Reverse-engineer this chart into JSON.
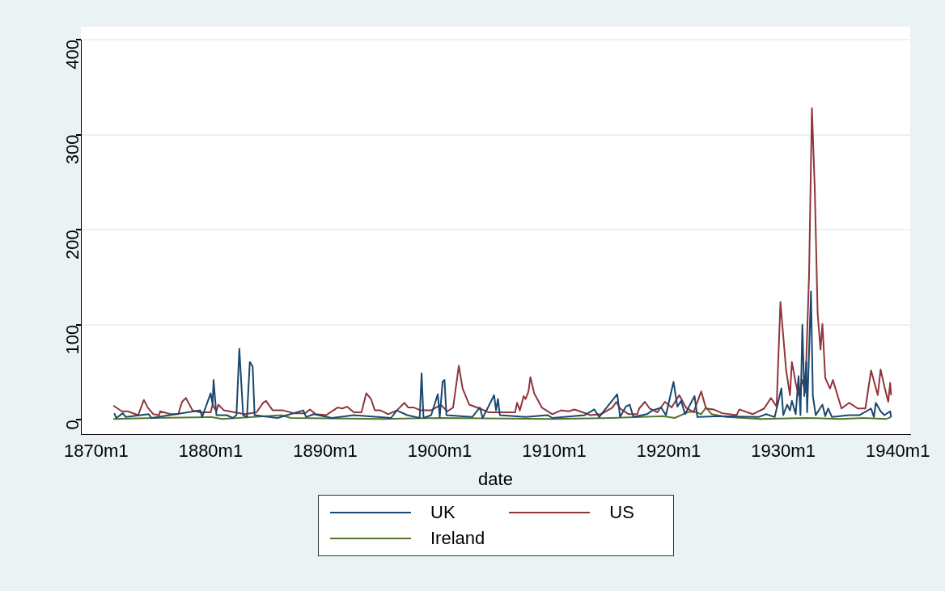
{
  "chart_data": {
    "type": "line",
    "xlabel": "date",
    "xlim": [
      "1868-09",
      "1941-02"
    ],
    "ylim": [
      -15,
      400
    ],
    "xticks": [
      {
        "value": "1870-01",
        "label": "1870m1"
      },
      {
        "value": "1880-01",
        "label": "1880m1"
      },
      {
        "value": "1890-01",
        "label": "1890m1"
      },
      {
        "value": "1900-01",
        "label": "1900m1"
      },
      {
        "value": "1910-01",
        "label": "1910m1"
      },
      {
        "value": "1920-01",
        "label": "1920m1"
      },
      {
        "value": "1930-01",
        "label": "1930m1"
      },
      {
        "value": "1940-01",
        "label": "1940m1"
      }
    ],
    "yticks": [
      0,
      100,
      200,
      300,
      400
    ],
    "grid": "y",
    "legend": "bottom",
    "marker": "none",
    "line_style": "solid",
    "series": [
      {
        "name": "UK",
        "color": "#1a476f",
        "x": [
          "1871-08",
          "1871-10",
          "1872-05",
          "1872-08",
          "1874-08",
          "1874-11",
          "1879-02",
          "1879-04",
          "1880-01",
          "1880-03",
          "1880-04",
          "1880-07",
          "1881-06",
          "1881-12",
          "1882-04",
          "1882-07",
          "1882-11",
          "1883-03",
          "1883-06",
          "1883-09",
          "1883-11",
          "1885-11",
          "1888-02",
          "1888-05",
          "1889-01",
          "1890-08",
          "1892-07",
          "1895-10",
          "1896-04",
          "1897-03",
          "1898-04",
          "1898-06",
          "1898-08",
          "1899-04",
          "1899-11",
          "1900-01",
          "1900-04",
          "1900-06",
          "1900-08",
          "1902-11",
          "1903-07",
          "1903-10",
          "1904-10",
          "1904-12",
          "1905-02",
          "1905-04",
          "1907-07",
          "1909-06",
          "1909-11",
          "1912-09",
          "1913-07",
          "1913-12",
          "1915-07",
          "1915-10",
          "1916-04",
          "1916-08",
          "1916-12",
          "1918-02",
          "1918-08",
          "1919-05",
          "1919-10",
          "1920-06",
          "1920-10",
          "1921-02",
          "1921-06",
          "1922-04",
          "1922-07",
          "1924-07",
          "1927-11",
          "1928-07",
          "1929-04",
          "1929-11",
          "1930-01",
          "1930-05",
          "1930-08",
          "1930-10",
          "1931-02",
          "1931-05",
          "1931-07",
          "1931-09",
          "1931-11",
          "1932-01",
          "1932-02",
          "1932-06",
          "1932-08",
          "1932-11",
          "1933-06",
          "1933-09",
          "1933-12",
          "1934-04",
          "1935-10",
          "1936-09",
          "1937-09",
          "1937-12",
          "1938-02",
          "1938-07",
          "1938-11",
          "1939-05",
          "1939-06"
        ],
        "values": [
          7,
          2,
          7,
          3,
          6,
          2,
          10,
          3,
          28,
          16,
          42,
          5,
          5,
          2,
          5,
          75,
          5,
          3,
          61,
          56,
          5,
          2,
          10,
          3,
          6,
          2,
          5,
          2,
          10,
          5,
          2,
          49,
          2,
          5,
          27,
          3,
          40,
          42,
          5,
          3,
          13,
          2,
          26,
          10,
          22,
          5,
          3,
          5,
          2,
          5,
          11,
          3,
          27,
          3,
          14,
          16,
          3,
          6,
          10,
          13,
          5,
          40,
          14,
          20,
          6,
          25,
          3,
          4,
          3,
          6,
          3,
          33,
          5,
          16,
          10,
          20,
          6,
          46,
          5,
          100,
          25,
          61,
          8,
          135,
          25,
          5,
          16,
          4,
          12,
          3,
          5,
          5,
          12,
          3,
          18,
          9,
          5,
          9,
          3
        ]
      },
      {
        "name": "US",
        "color": "#90353b",
        "x": [
          "1871-07",
          "1872-04",
          "1872-10",
          "1873-09",
          "1874-03",
          "1874-07",
          "1875-01",
          "1875-07",
          "1875-08",
          "1876-07",
          "1877-03",
          "1877-07",
          "1877-11",
          "1878-06",
          "1879-02",
          "1880-01",
          "1880-03",
          "1880-07",
          "1880-09",
          "1881-03",
          "1882-02",
          "1883-01",
          "1884-01",
          "1884-08",
          "1884-11",
          "1885-06",
          "1886-05",
          "1887-04",
          "1888-04",
          "1888-09",
          "1889-03",
          "1890-02",
          "1891-02",
          "1891-07",
          "1891-12",
          "1892-07",
          "1893-03",
          "1893-08",
          "1894-01",
          "1894-05",
          "1894-11",
          "1895-07",
          "1896-04",
          "1896-12",
          "1897-04",
          "1897-10",
          "1898-05",
          "1899-04",
          "1900-02",
          "1900-09",
          "1901-03",
          "1901-09",
          "1902-01",
          "1902-08",
          "1903-07",
          "1904-04",
          "1905-08",
          "1906-08",
          "1906-10",
          "1907-01",
          "1907-05",
          "1907-07",
          "1907-10",
          "1907-12",
          "1908-04",
          "1908-12",
          "1909-11",
          "1910-08",
          "1911-04",
          "1911-10",
          "1912-07",
          "1913-03",
          "1914-02",
          "1915-02",
          "1915-06",
          "1915-10",
          "1916-07",
          "1917-04",
          "1917-06",
          "1917-12",
          "1918-05",
          "1919-01",
          "1919-09",
          "1920-04",
          "1920-12",
          "1921-07",
          "1922-03",
          "1922-11",
          "1923-04",
          "1923-12",
          "1924-09",
          "1925-12",
          "1926-03",
          "1927-05",
          "1928-05",
          "1928-12",
          "1929-06",
          "1929-10",
          "1930-04",
          "1930-08",
          "1930-10",
          "1931-02",
          "1931-05",
          "1931-09",
          "1931-12",
          "1932-04",
          "1932-07",
          "1932-10",
          "1933-01",
          "1933-04",
          "1933-06",
          "1933-09",
          "1934-02",
          "1934-05",
          "1935-02",
          "1935-10",
          "1936-07",
          "1937-03",
          "1937-09",
          "1938-04",
          "1938-07",
          "1938-11",
          "1939-03",
          "1939-05",
          "1939-06"
        ],
        "values": [
          15,
          9,
          9,
          5,
          21,
          13,
          6,
          5,
          9,
          6,
          6,
          19,
          23,
          10,
          8,
          8,
          16,
          9,
          16,
          10,
          8,
          6,
          8,
          18,
          20,
          10,
          10,
          7,
          7,
          11,
          6,
          5,
          13,
          12,
          14,
          8,
          8,
          28,
          22,
          10,
          10,
          6,
          10,
          18,
          13,
          13,
          10,
          10,
          16,
          9,
          13,
          57,
          33,
          16,
          12,
          8,
          8,
          8,
          18,
          10,
          25,
          22,
          30,
          45,
          28,
          13,
          6,
          10,
          9,
          11,
          8,
          5,
          6,
          13,
          19,
          12,
          6,
          6,
          12,
          19,
          12,
          8,
          19,
          13,
          26,
          13,
          8,
          30,
          12,
          11,
          7,
          5,
          11,
          6,
          12,
          23,
          14,
          124,
          52,
          26,
          61,
          39,
          26,
          42,
          29,
          152,
          328,
          243,
          112,
          74,
          101,
          44,
          33,
          42,
          12,
          18,
          12,
          12,
          52,
          26,
          53,
          35,
          19,
          39,
          26
        ]
      },
      {
        "name": "Ireland",
        "color": "#55752f",
        "x": [
          "1871-07",
          "1875-01",
          "1880-01",
          "1881-01",
          "1886-03",
          "1887-01",
          "1895-01",
          "1900-01",
          "1910-01",
          "1915-01",
          "1917-07",
          "1919-07",
          "1920-07",
          "1921-09",
          "1922-03",
          "1922-11",
          "1923-04",
          "1923-10",
          "1925-01",
          "1928-01",
          "1932-01",
          "1935-01",
          "1937-01",
          "1939-01",
          "1939-06"
        ],
        "values": [
          1,
          2,
          3,
          1,
          5,
          2,
          1,
          2,
          1,
          2,
          3,
          4,
          2,
          8,
          9,
          6,
          13,
          6,
          3,
          1,
          2,
          1,
          2,
          1,
          3
        ]
      }
    ]
  }
}
